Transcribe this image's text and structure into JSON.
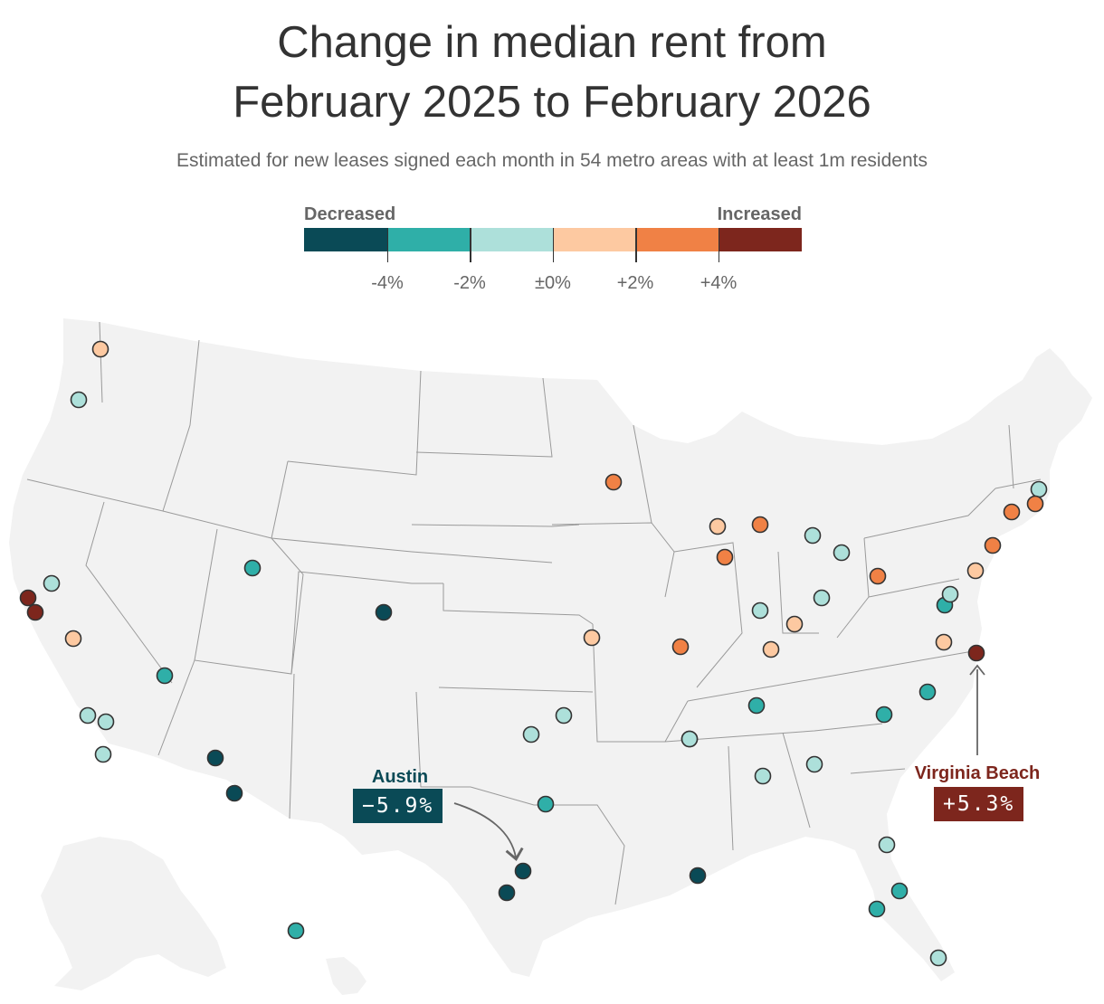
{
  "title_line1": "Change in median rent from",
  "title_line2": "February 2025 to February 2026",
  "subtitle": "Estimated for new leases signed each month in 54 metro areas with at least 1m residents",
  "legend": {
    "left_label": "Decreased",
    "right_label": "Increased",
    "colors": [
      "#0a4a56",
      "#2fafa8",
      "#ade0da",
      "#fdc9a1",
      "#f08145",
      "#7d261d"
    ],
    "ticks": [
      "-4%",
      "-2%",
      "±0%",
      "+2%",
      "+4%"
    ]
  },
  "colors": {
    "land": "#f2f2f2",
    "state_border": "#9a9a9a",
    "marker_stroke": "#333333"
  },
  "callouts": {
    "austin": {
      "name": "Austin",
      "value": "−5.9%",
      "color": "#0a4a56"
    },
    "virginia_beach": {
      "name": "Virginia Beach",
      "value": "+5.3%",
      "color": "#7d261d"
    }
  },
  "metros": [
    {
      "bin": 3
    },
    {
      "bin": 2
    },
    {
      "bin": 5
    },
    {
      "bin": 5
    },
    {
      "bin": 2
    },
    {
      "bin": 3
    },
    {
      "bin": 2
    },
    {
      "bin": 2
    },
    {
      "bin": 2
    },
    {
      "bin": 1
    },
    {
      "bin": 1
    },
    {
      "bin": 0
    },
    {
      "bin": 0
    },
    {
      "bin": 0
    },
    {
      "bin": 0
    },
    {
      "bin": 1
    },
    {
      "bin": 0
    },
    {
      "bin": 0
    },
    {
      "bin": 2
    },
    {
      "bin": 2
    },
    {
      "bin": 1
    },
    {
      "bin": 2
    },
    {
      "bin": 3
    },
    {
      "bin": 4
    },
    {
      "bin": 4
    },
    {
      "bin": 3
    },
    {
      "bin": 4
    },
    {
      "bin": 4
    },
    {
      "bin": 2
    },
    {
      "bin": 2
    },
    {
      "bin": 2
    },
    {
      "bin": 3
    },
    {
      "bin": 3
    },
    {
      "bin": 2
    },
    {
      "bin": 4
    },
    {
      "bin": 1
    },
    {
      "bin": 2
    },
    {
      "bin": 3
    },
    {
      "bin": 3
    },
    {
      "bin": 5
    },
    {
      "bin": 1
    },
    {
      "bin": 1
    },
    {
      "bin": 2
    },
    {
      "bin": 2
    },
    {
      "bin": 2
    },
    {
      "bin": 1
    },
    {
      "bin": 1
    },
    {
      "bin": 2
    },
    {
      "bin": 4
    },
    {
      "bin": 4
    },
    {
      "bin": 2
    },
    {
      "bin": 4
    },
    {
      "bin": 1
    },
    {
      "bin": 2
    }
  ]
}
